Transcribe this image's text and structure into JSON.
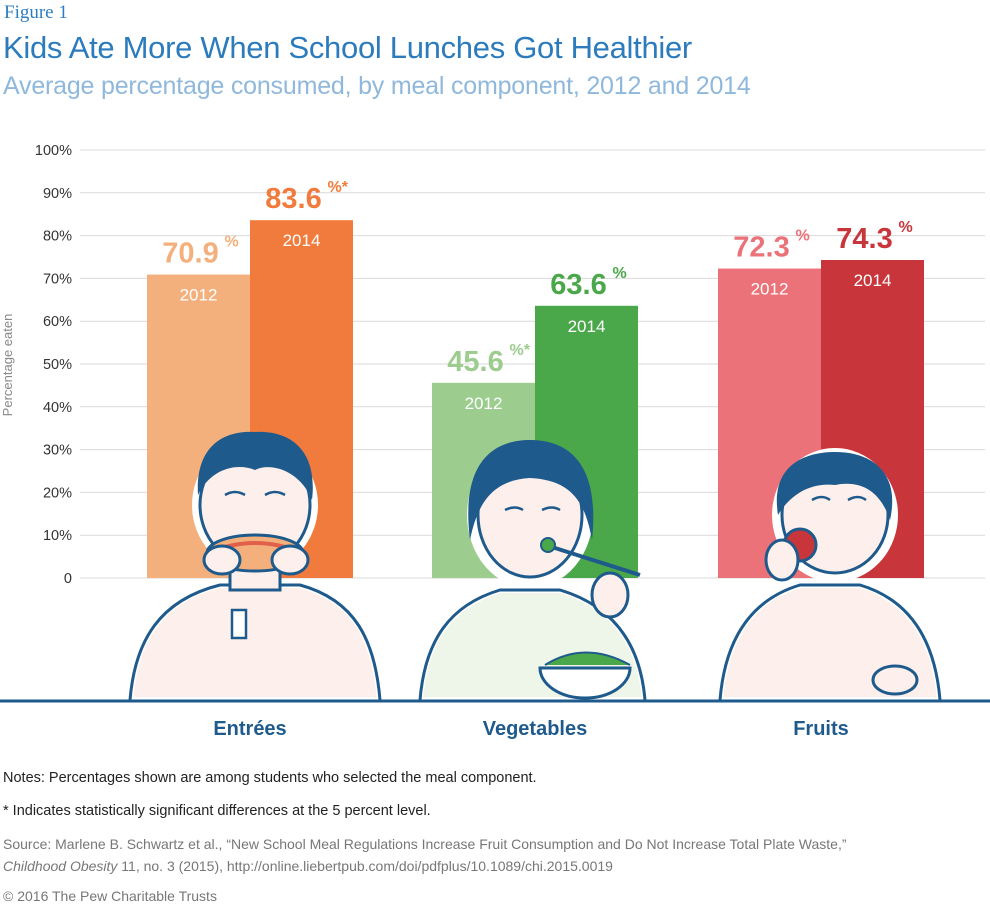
{
  "figure_label": "Figure 1",
  "title": "Kids Ate More When School Lunches Got Healthier",
  "subtitle": "Average percentage consumed, by meal component, 2012 and 2014",
  "chart_data": {
    "type": "bar",
    "ylabel": "Percentage eaten",
    "ylim": [
      0,
      100
    ],
    "yticks": [
      "0",
      "10%",
      "20%",
      "30%",
      "40%",
      "50%",
      "60%",
      "70%",
      "80%",
      "90%",
      "100%"
    ],
    "grid": true,
    "categories": [
      "Entrées",
      "Vegetables",
      "Fruits"
    ],
    "series": [
      {
        "name": "2012",
        "values": [
          70.9,
          45.6,
          72.3
        ]
      },
      {
        "name": "2014",
        "values": [
          83.6,
          63.6,
          74.3
        ]
      }
    ],
    "value_labels": [
      [
        "70.9",
        "83.6"
      ],
      [
        "45.6",
        "63.6"
      ],
      [
        "72.3",
        "74.3"
      ]
    ],
    "significant": [
      false,
      true,
      true,
      false,
      false,
      false
    ],
    "colors": {
      "Entrées": [
        "#f4b07c",
        "#f07b3c"
      ],
      "Vegetables": [
        "#9ccc8e",
        "#4aa84a"
      ],
      "Fruits": [
        "#ec727a",
        "#c8363c"
      ]
    },
    "label_colors": {
      "Entrées": [
        "#f4b07c",
        "#f07b3c"
      ],
      "Vegetables": [
        "#9ccc8e",
        "#4aa84a"
      ],
      "Fruits": [
        "#ec727a",
        "#c8363c"
      ]
    },
    "category_label_color": "#1f5a8c",
    "axis_color": "#1f5a8c"
  },
  "notes": "Notes: Percentages shown are among students who selected the meal component.",
  "significance_note": "*  Indicates statistically significant differences at the 5 percent level.",
  "source_line1": "Source: Marlene B. Schwartz et al., “New School Meal Regulations Increase Fruit Consumption and Do Not Increase Total Plate Waste,”",
  "source_journal": "Childhood Obesity",
  "source_line2_rest": " 11, no. 3 (2015), http://online.liebertpub.com/doi/pdfplus/10.1089/chi.2015.0019",
  "copyright": "© 2016 The Pew Charitable Trusts"
}
